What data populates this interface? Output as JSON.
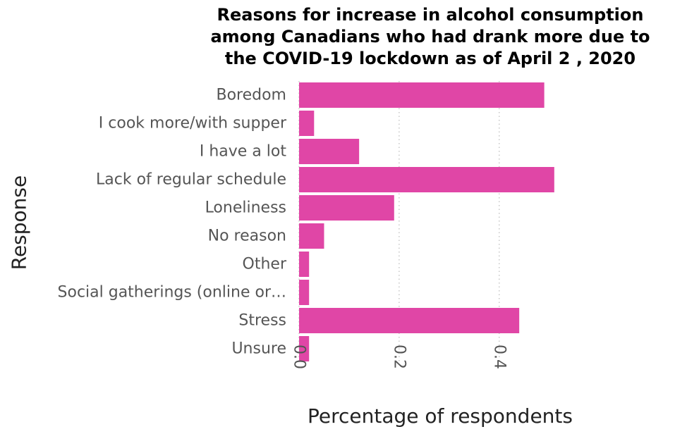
{
  "chart_data": {
    "type": "bar",
    "orientation": "horizontal",
    "title_lines": [
      "Reasons for increase in alcohol consumption",
      "among Canadians who had drank more due to",
      "the COVID-19 lockdown as of April 2 , 2020"
    ],
    "xlabel": "Percentage of respondents",
    "ylabel": "Response",
    "categories": [
      "Boredom",
      "I cook more/with supper",
      "I have a lot",
      "Lack of regular schedule",
      "Loneliness",
      "No reason",
      "Other",
      "Social gatherings (online or…",
      "Stress",
      "Unsure"
    ],
    "values": [
      0.49,
      0.03,
      0.12,
      0.51,
      0.19,
      0.05,
      0.02,
      0.02,
      0.44,
      0.02
    ],
    "xticks": [
      "0.0",
      "0.2",
      "0.4"
    ],
    "xtick_values": [
      0.0,
      0.2,
      0.4
    ],
    "xlim": [
      0,
      0.53
    ],
    "grid": "vertical dotted",
    "bar_color": "#e046a6",
    "grid_color": "#bbbbbb"
  }
}
